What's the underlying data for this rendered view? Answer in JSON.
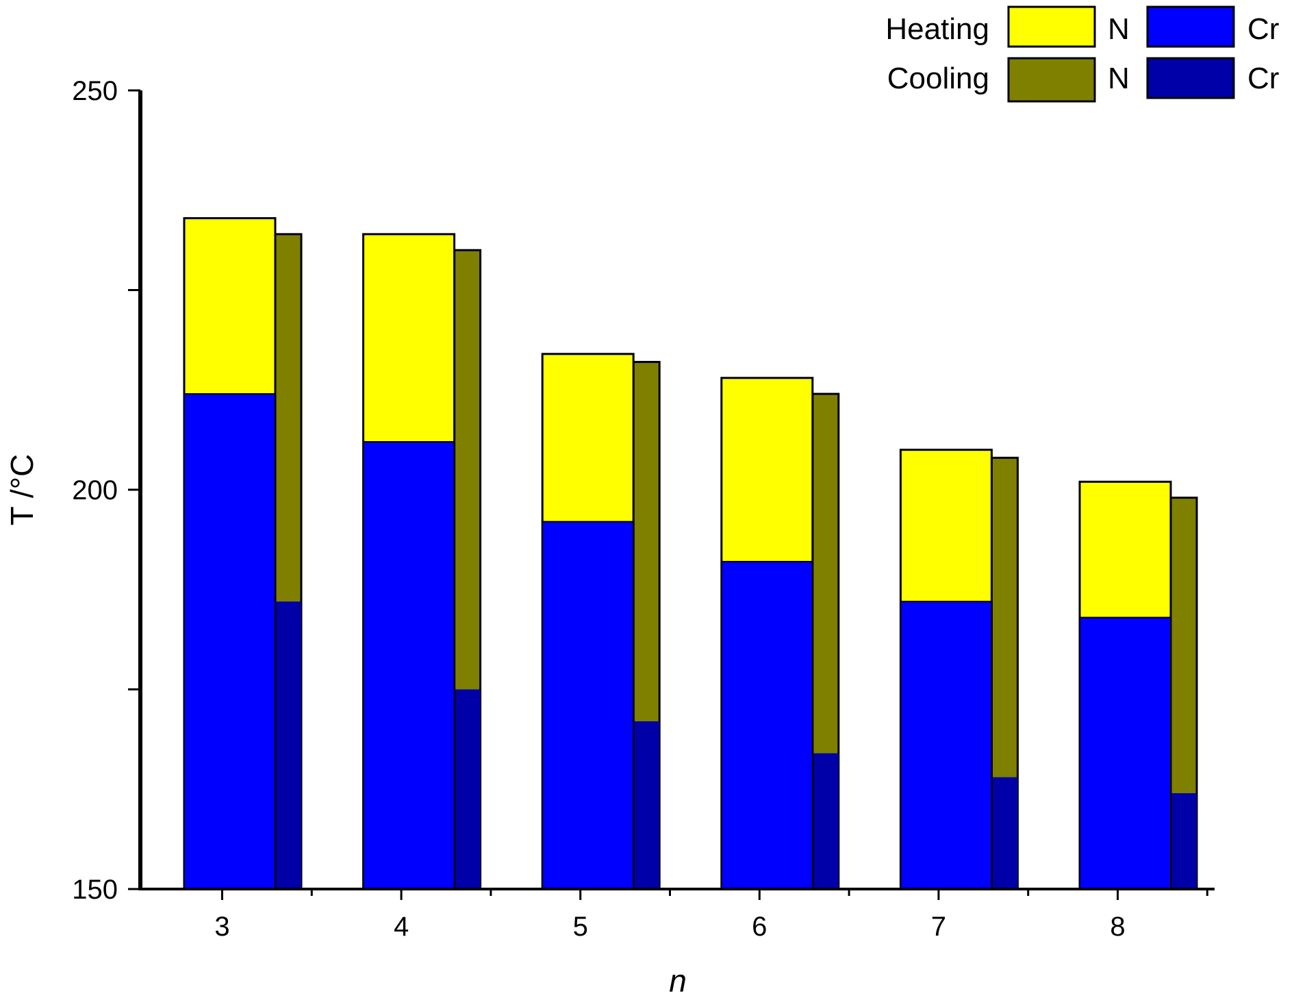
{
  "chart_data": {
    "type": "bar",
    "xlabel": "n",
    "ylabel": "T /°C",
    "ylim": [
      150,
      250
    ],
    "yticks": [
      150,
      200,
      250
    ],
    "categories": [
      "3",
      "4",
      "5",
      "6",
      "7",
      "8"
    ],
    "series": [
      {
        "name": "Heating Cr",
        "values": [
          212,
          206,
          196,
          191,
          186,
          184
        ]
      },
      {
        "name": "Heating N",
        "values": [
          234,
          232,
          217,
          214,
          205,
          201
        ]
      },
      {
        "name": "Cooling Cr",
        "values": [
          186,
          175,
          171,
          167,
          164,
          162
        ]
      },
      {
        "name": "Cooling N",
        "values": [
          232,
          230,
          216,
          212,
          204,
          199
        ]
      }
    ],
    "legend": {
      "position": "top-right",
      "rows": [
        {
          "label": "Heating",
          "items": [
            {
              "label": "N",
              "color": "#ffff00"
            },
            {
              "label": "Cr",
              "color": "#0000ff"
            }
          ]
        },
        {
          "label": "Cooling",
          "items": [
            {
              "label": "N",
              "color": "#808000"
            },
            {
              "label": "Cr",
              "color": "#0000a8"
            }
          ]
        }
      ]
    },
    "colors": {
      "heating_n": "#ffff00",
      "heating_cr": "#0000ff",
      "cooling_n": "#808000",
      "cooling_cr": "#0000a8"
    }
  }
}
